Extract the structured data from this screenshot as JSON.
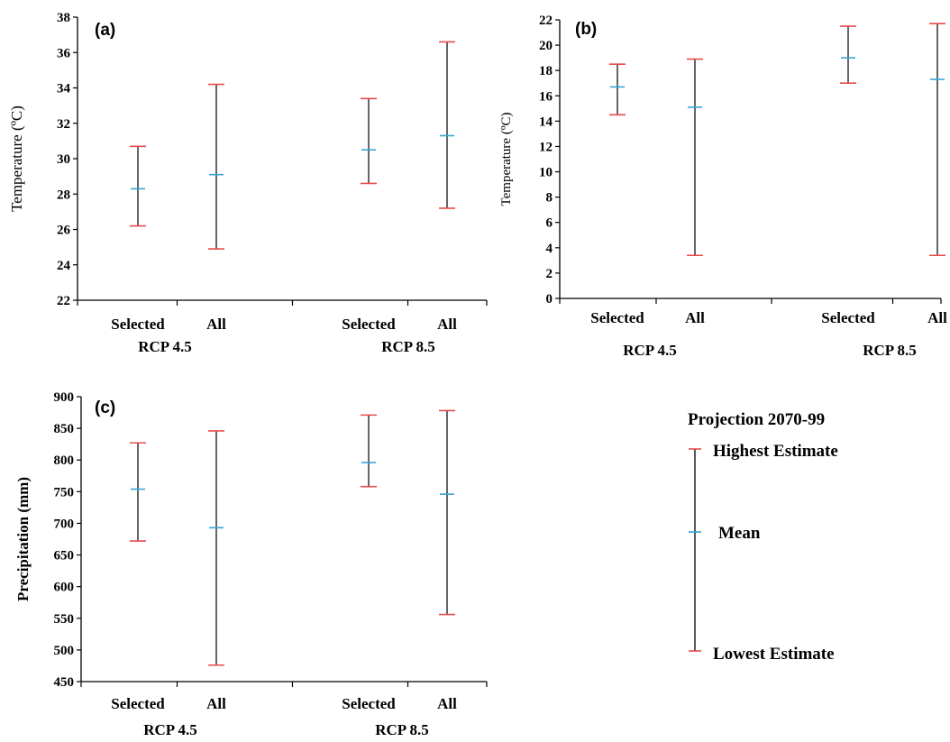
{
  "figure": {
    "legend": {
      "title": "Projection 2070-99",
      "highest_label": "Highest Estimate",
      "mean_label": "Mean",
      "lowest_label": "Lowest Estimate"
    },
    "colors": {
      "extreme": "#e84b4b",
      "mean": "#35a6d6",
      "line": "#000000"
    }
  },
  "chart_data": [
    {
      "type": "errorbar",
      "panel": "(a)",
      "ylabel": "Temperature (ºC)",
      "ylim": [
        22,
        38
      ],
      "ytick_step": 2,
      "groups": [
        "RCP 4.5",
        "RCP 8.5"
      ],
      "categories": [
        "Selected",
        "All",
        "Selected",
        "All"
      ],
      "series": [
        {
          "name": "Highest Estimate",
          "values": [
            30.7,
            34.2,
            33.4,
            36.6
          ]
        },
        {
          "name": "Mean",
          "values": [
            28.3,
            29.1,
            30.5,
            31.3
          ]
        },
        {
          "name": "Lowest Estimate",
          "values": [
            26.2,
            24.9,
            28.6,
            27.2
          ]
        }
      ]
    },
    {
      "type": "errorbar",
      "panel": "(b)",
      "ylabel": "Temperature (ºC)",
      "ylim": [
        0,
        22
      ],
      "ytick_step": 2,
      "groups": [
        "RCP 4.5",
        "RCP 8.5"
      ],
      "categories": [
        "Selected",
        "All",
        "Selected",
        "All"
      ],
      "series": [
        {
          "name": "Highest Estimate",
          "values": [
            18.5,
            18.9,
            21.5,
            21.7
          ]
        },
        {
          "name": "Mean",
          "values": [
            16.7,
            15.1,
            19.0,
            17.3
          ]
        },
        {
          "name": "Lowest Estimate",
          "values": [
            14.5,
            3.4,
            17.0,
            3.4
          ]
        }
      ]
    },
    {
      "type": "errorbar",
      "panel": "(c)",
      "ylabel": "Precipitation (mm)",
      "ylim": [
        450,
        900
      ],
      "ytick_step": 50,
      "groups": [
        "RCP 4.5",
        "RCP 8.5"
      ],
      "categories": [
        "Selected",
        "All",
        "Selected",
        "All"
      ],
      "series": [
        {
          "name": "Highest Estimate",
          "values": [
            827,
            846,
            871,
            878
          ]
        },
        {
          "name": "Mean",
          "values": [
            754,
            693,
            796,
            746
          ]
        },
        {
          "name": "Lowest Estimate",
          "values": [
            672,
            476,
            758,
            556
          ]
        }
      ]
    }
  ]
}
